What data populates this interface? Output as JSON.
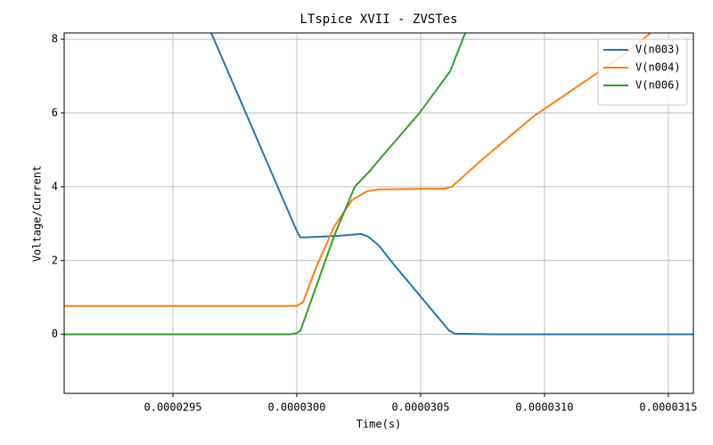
{
  "chart_data": {
    "type": "line",
    "title": "LTspice XVII - ZVSTes",
    "x_label": "Time(s)",
    "y_label": "Voltage/Current",
    "xlim": [
      2.9061e-05,
      3.1601e-05
    ],
    "ylim": [
      -1.6,
      8.17
    ],
    "xticks": [
      {
        "value": 2.95e-05,
        "label": "0.0000295"
      },
      {
        "value": 3e-05,
        "label": "0.0000300"
      },
      {
        "value": 3.05e-05,
        "label": "0.0000305"
      },
      {
        "value": 3.1e-05,
        "label": "0.0000310"
      },
      {
        "value": 3.15e-05,
        "label": "0.0000315"
      }
    ],
    "yticks": [
      0,
      2,
      4,
      6,
      8
    ],
    "grid": true,
    "legend": "upper right",
    "series": [
      {
        "name": "V(n003)",
        "color": "#1f77b4",
        "x": [
          2.96547e-05,
          3e-05,
          3.00144e-05,
          3.0036e-05,
          3.0169e-05,
          3.0259e-05,
          3.0288e-05,
          3.0331e-05,
          3.0385e-05,
          3.0615e-05,
          3.0637e-05,
          3.0817e-05,
          3.1601e-05
        ],
        "values": [
          8.17,
          2.8,
          2.63,
          2.63,
          2.67,
          2.72,
          2.65,
          2.41,
          1.95,
          0.1,
          0.02,
          0.0,
          0.0
        ]
      },
      {
        "name": "V(n004)",
        "color": "#ff7f0e",
        "x": [
          2.9061e-05,
          3e-05,
          3.0025e-05,
          3.0079e-05,
          3.0151e-05,
          3.0223e-05,
          3.0284e-05,
          3.0331e-05,
          3.0601e-05,
          3.0626e-05,
          3.0745e-05,
          3.096e-05,
          3.132e-05,
          3.1428e-05
        ],
        "values": [
          0.77,
          0.77,
          0.87,
          1.83,
          2.92,
          3.64,
          3.88,
          3.93,
          3.95,
          4.0,
          4.72,
          5.93,
          7.57,
          8.17
        ]
      },
      {
        "name": "V(n006)",
        "color": "#2ca02c",
        "x": [
          2.9061e-05,
          2.9971e-05,
          3e-05,
          3.00144e-05,
          3.0043e-05,
          3.0151e-05,
          3.0234e-05,
          3.0295e-05,
          3.0331e-05,
          3.0493e-05,
          3.0619e-05,
          3.068e-05
        ],
        "values": [
          0.0,
          0.0,
          0.03,
          0.1,
          0.63,
          2.67,
          4.0,
          4.43,
          4.72,
          5.98,
          7.13,
          8.17
        ]
      }
    ]
  }
}
